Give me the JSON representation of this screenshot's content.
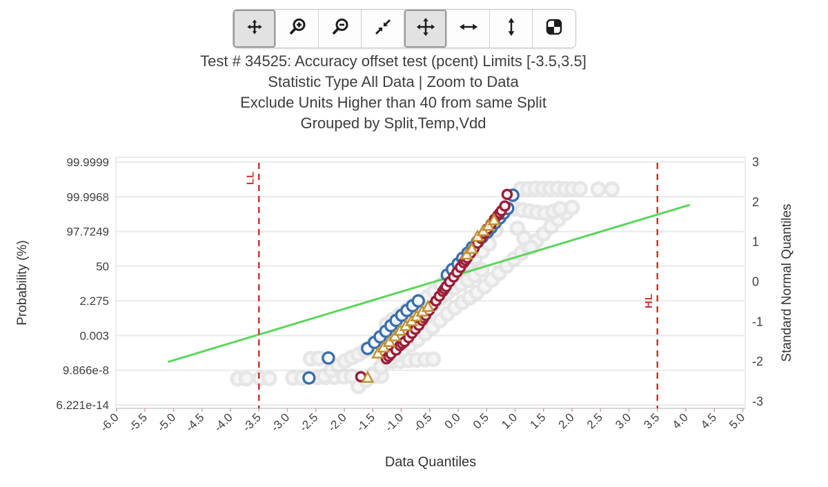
{
  "toolbar": {
    "buttons": [
      {
        "name": "reset-view",
        "icon": "crosshair-move-icon",
        "active": true
      },
      {
        "name": "zoom-in",
        "icon": "zoom-in-icon",
        "active": false
      },
      {
        "name": "zoom-out",
        "icon": "zoom-out-icon",
        "active": false
      },
      {
        "name": "zoom-to-fit",
        "icon": "compress-icon",
        "active": false
      },
      {
        "name": "pan",
        "icon": "move-icon",
        "active": true
      },
      {
        "name": "pan-horizontal",
        "icon": "h-arrow-icon",
        "active": false
      },
      {
        "name": "pan-vertical",
        "icon": "v-arrow-icon",
        "active": false
      },
      {
        "name": "layout-grid",
        "icon": "quadrants-icon",
        "active": false
      }
    ]
  },
  "title_lines": [
    "Test # 34525: Accuracy offset test (pcent) Limits [-3.5,3.5]",
    "Statistic Type All Data | Zoom to Data",
    "Exclude Units Higher than 40 from same Split",
    "Grouped by Split,Temp,Vdd"
  ],
  "chart_data": {
    "type": "scatter",
    "subtype": "normal-probability-qq-plot",
    "xlabel": "Data Quantiles",
    "ylabel_left": "Probability (%)",
    "ylabel_right": "Standard Normal Quantiles",
    "xlim": [
      -6,
      5
    ],
    "ylim_right": [
      -3,
      3
    ],
    "x_tick_labels": [
      "-6.0",
      "-5.5",
      "-5.0",
      "-4.5",
      "-4.0",
      "-3.5",
      "-3.0",
      "-2.5",
      "-2.0",
      "-1.5",
      "-1.0",
      "-0.5",
      "0.0",
      "0.5",
      "1.0",
      "1.5",
      "2.0",
      "2.5",
      "3.0",
      "3.5",
      "4.0",
      "4.5",
      "5.0"
    ],
    "y_ticks_left": [
      "99.9999",
      "99.9968",
      "97.7249",
      "50",
      "2.275",
      "0.003",
      "9.866e-8",
      "6.221e-14"
    ],
    "y_ticks_right": [
      "3",
      "2",
      "1",
      "0",
      "-1",
      "-2",
      "-3"
    ],
    "grid": "horizontal",
    "legend": "none",
    "limit_lines": {
      "color": "#cc3333",
      "low": {
        "label": "LL",
        "x": -3.5
      },
      "high": {
        "label": "HL",
        "x": 3.5
      }
    },
    "fit_line": {
      "color": "#5bd65b",
      "x1": -5.1,
      "y1": -2.01,
      "x2": 4.07,
      "y2": 1.93
    },
    "series": [
      {
        "name": "all-units-background",
        "color": "#d2d2d2",
        "fill": "#ededed",
        "marker": "circle",
        "r": 9,
        "stroke_width": 5,
        "opacity": 0.55,
        "points": [
          [
            -3.87,
            -2.43
          ],
          [
            -3.72,
            -2.43
          ],
          [
            -3.48,
            -2.42
          ],
          [
            -3.32,
            -2.42
          ],
          [
            -2.9,
            -2.41
          ],
          [
            -2.74,
            -2.41
          ],
          [
            -2.47,
            -2.4
          ],
          [
            -2.33,
            -2.39
          ],
          [
            -2.17,
            -2.39
          ],
          [
            -2.01,
            -2.38
          ],
          [
            -1.87,
            -2.37
          ],
          [
            -1.47,
            -2.36
          ],
          [
            -1.35,
            -2.36
          ],
          [
            -2.59,
            -1.93
          ],
          [
            -2.45,
            -1.92
          ],
          [
            -1.31,
            -2.02
          ],
          [
            -1.16,
            -2.0
          ],
          [
            -1.02,
            -1.99
          ],
          [
            -0.87,
            -1.97
          ],
          [
            -0.73,
            -1.96
          ],
          [
            -0.58,
            -1.95
          ],
          [
            -0.44,
            -1.94
          ],
          [
            -2.35,
            -2.36
          ],
          [
            -2.23,
            -2.22
          ],
          [
            -2.11,
            -2.1
          ],
          [
            -1.99,
            -1.99
          ],
          [
            -1.87,
            -1.9
          ],
          [
            -1.75,
            -1.82
          ],
          [
            -1.63,
            -1.72
          ],
          [
            -1.51,
            -1.6
          ],
          [
            -1.39,
            -1.47
          ],
          [
            -1.27,
            -1.33
          ],
          [
            -1.15,
            -1.2
          ],
          [
            -1.03,
            -1.09
          ],
          [
            -0.91,
            -1.0
          ],
          [
            -0.79,
            -0.92
          ],
          [
            -0.67,
            -0.82
          ],
          [
            -0.55,
            -0.7
          ],
          [
            -0.43,
            -0.56
          ],
          [
            -0.31,
            -0.42
          ],
          [
            -0.19,
            -0.28
          ],
          [
            -0.07,
            -0.16
          ],
          [
            0.05,
            -0.06
          ],
          [
            0.17,
            0.04
          ],
          [
            0.29,
            0.16
          ],
          [
            0.41,
            0.3
          ],
          [
            -1.75,
            -2.62
          ],
          [
            -1.62,
            -2.47
          ],
          [
            -1.49,
            -2.31
          ],
          [
            -1.36,
            -2.14
          ],
          [
            -1.23,
            -1.98
          ],
          [
            -1.1,
            -1.83
          ],
          [
            -0.97,
            -1.7
          ],
          [
            -0.84,
            -1.58
          ],
          [
            -0.71,
            -1.45
          ],
          [
            -0.58,
            -1.3
          ],
          [
            -0.45,
            -1.14
          ],
          [
            -0.32,
            -0.97
          ],
          [
            -0.19,
            -0.8
          ],
          [
            -0.06,
            -0.65
          ],
          [
            0.07,
            -0.52
          ],
          [
            0.2,
            -0.4
          ],
          [
            0.33,
            -0.27
          ],
          [
            0.46,
            -0.12
          ],
          [
            0.59,
            0.05
          ],
          [
            0.72,
            0.22
          ],
          [
            0.85,
            0.4
          ],
          [
            0.98,
            0.57
          ],
          [
            1.11,
            0.72
          ],
          [
            1.24,
            0.86
          ],
          [
            1.37,
            1.02
          ],
          [
            1.5,
            1.2
          ],
          [
            1.63,
            1.38
          ],
          [
            1.76,
            1.56
          ],
          [
            1.89,
            1.72
          ],
          [
            2.0,
            1.86
          ],
          [
            -1.26,
            -1.07
          ],
          [
            -1.14,
            -0.94
          ],
          [
            -1.02,
            -0.82
          ],
          [
            -0.9,
            -0.7
          ],
          [
            -0.78,
            -0.6
          ],
          [
            -0.66,
            -0.5
          ],
          [
            -0.54,
            -0.38
          ],
          [
            -0.42,
            -0.24
          ],
          [
            -0.3,
            -0.08
          ],
          [
            -0.18,
            0.08
          ],
          [
            -0.06,
            0.22
          ],
          [
            0.06,
            0.34
          ],
          [
            0.18,
            0.46
          ],
          [
            0.3,
            0.6
          ],
          [
            0.42,
            0.76
          ],
          [
            0.54,
            0.95
          ],
          [
            0.66,
            1.3
          ],
          [
            1.1,
            2.33
          ],
          [
            1.23,
            2.33
          ],
          [
            1.36,
            2.34
          ],
          [
            1.49,
            2.34
          ],
          [
            1.62,
            2.34
          ],
          [
            1.75,
            2.34
          ],
          [
            1.88,
            2.33
          ],
          [
            2.01,
            2.33
          ],
          [
            2.14,
            2.33
          ],
          [
            2.46,
            2.32
          ],
          [
            2.7,
            2.32
          ],
          [
            0.98,
            1.83
          ],
          [
            1.13,
            1.8
          ],
          [
            1.26,
            1.77
          ],
          [
            1.39,
            1.74
          ],
          [
            1.53,
            1.72
          ],
          [
            1.67,
            1.76
          ],
          [
            1.79,
            1.83
          ],
          [
            1.04,
            1.34
          ],
          [
            1.16,
            1.09
          ],
          [
            1.28,
            0.86
          ]
        ]
      },
      {
        "name": "group-blue",
        "color": "#3a6fad",
        "fill": "#ffffff",
        "marker": "circle",
        "r": 8,
        "stroke_width": 3.5,
        "opacity": 1,
        "points": [
          [
            -2.62,
            -2.41
          ],
          [
            -2.28,
            -1.91
          ],
          [
            -1.59,
            -1.67
          ],
          [
            -1.47,
            -1.52
          ],
          [
            -1.37,
            -1.38
          ],
          [
            -1.27,
            -1.24
          ],
          [
            -1.18,
            -1.1
          ],
          [
            -1.09,
            -0.97
          ],
          [
            -0.99,
            -0.84
          ],
          [
            -0.9,
            -0.72
          ],
          [
            -0.8,
            -0.6
          ],
          [
            -0.7,
            -0.48
          ],
          [
            -0.19,
            0.17
          ],
          [
            -0.1,
            0.31
          ],
          [
            0.0,
            0.45
          ],
          [
            0.08,
            0.59
          ],
          [
            0.17,
            0.72
          ],
          [
            0.25,
            0.86
          ],
          [
            0.34,
            1.0
          ],
          [
            0.42,
            1.12
          ],
          [
            0.51,
            1.24
          ],
          [
            0.58,
            1.36
          ],
          [
            0.65,
            1.48
          ],
          [
            0.73,
            1.6
          ],
          [
            0.8,
            1.72
          ],
          [
            0.87,
            1.84
          ],
          [
            0.96,
            2.17
          ]
        ]
      },
      {
        "name": "group-maroon",
        "color": "#9b1e38",
        "fill": "#ffffff",
        "marker": "circle",
        "r": 6.5,
        "stroke_width": 3.5,
        "opacity": 1,
        "points": [
          [
            -1.71,
            -2.38
          ],
          [
            -1.26,
            -1.93
          ],
          [
            -1.22,
            -1.87
          ],
          [
            -1.18,
            -1.81
          ],
          [
            -1.09,
            -1.71
          ],
          [
            -1.02,
            -1.6
          ],
          [
            -0.98,
            -1.55
          ],
          [
            -0.94,
            -1.5
          ],
          [
            -0.87,
            -1.4
          ],
          [
            -0.81,
            -1.29
          ],
          [
            -0.75,
            -1.19
          ],
          [
            -0.69,
            -1.09
          ],
          [
            -0.63,
            -0.97
          ],
          [
            -0.6,
            -0.9
          ],
          [
            -0.57,
            -0.84
          ],
          [
            -0.51,
            -0.72
          ],
          [
            -0.45,
            -0.6
          ],
          [
            -0.39,
            -0.48
          ],
          [
            -0.33,
            -0.36
          ],
          [
            -0.27,
            -0.24
          ],
          [
            -0.24,
            -0.18
          ],
          [
            -0.21,
            -0.12
          ],
          [
            -0.15,
            0.0
          ],
          [
            -0.08,
            0.12
          ],
          [
            -0.02,
            0.24
          ],
          [
            0.04,
            0.36
          ],
          [
            0.1,
            0.48
          ],
          [
            0.13,
            0.54
          ],
          [
            0.16,
            0.6
          ],
          [
            0.22,
            0.72
          ],
          [
            0.28,
            0.84
          ],
          [
            0.34,
            0.97
          ],
          [
            0.4,
            1.09
          ],
          [
            0.46,
            1.21
          ],
          [
            0.49,
            1.27
          ],
          [
            0.52,
            1.33
          ],
          [
            0.58,
            1.45
          ],
          [
            0.64,
            1.57
          ],
          [
            0.7,
            1.67
          ],
          [
            0.73,
            1.72
          ],
          [
            0.76,
            1.78
          ],
          [
            0.82,
            1.9
          ],
          [
            0.86,
            2.19
          ]
        ]
      },
      {
        "name": "group-gold",
        "color": "#bf9130",
        "fill": "#ffffff",
        "marker": "triangle",
        "r": 7.5,
        "stroke_width": 2.5,
        "opacity": 1,
        "points": [
          [
            -1.59,
            -2.4
          ],
          [
            -1.41,
            -1.79
          ],
          [
            -1.31,
            -1.64
          ],
          [
            -1.21,
            -1.5
          ],
          [
            -1.11,
            -1.36
          ],
          [
            -1.02,
            -1.22
          ],
          [
            -0.92,
            -1.1
          ],
          [
            -0.82,
            -0.98
          ],
          [
            -0.73,
            -0.86
          ],
          [
            -0.63,
            -0.74
          ],
          [
            -0.53,
            -0.62
          ],
          [
            0.15,
            0.69
          ],
          [
            0.24,
            0.83
          ],
          [
            0.34,
            1.14
          ],
          [
            0.44,
            1.28
          ],
          [
            0.53,
            1.41
          ],
          [
            0.63,
            1.55
          ]
        ]
      }
    ]
  }
}
